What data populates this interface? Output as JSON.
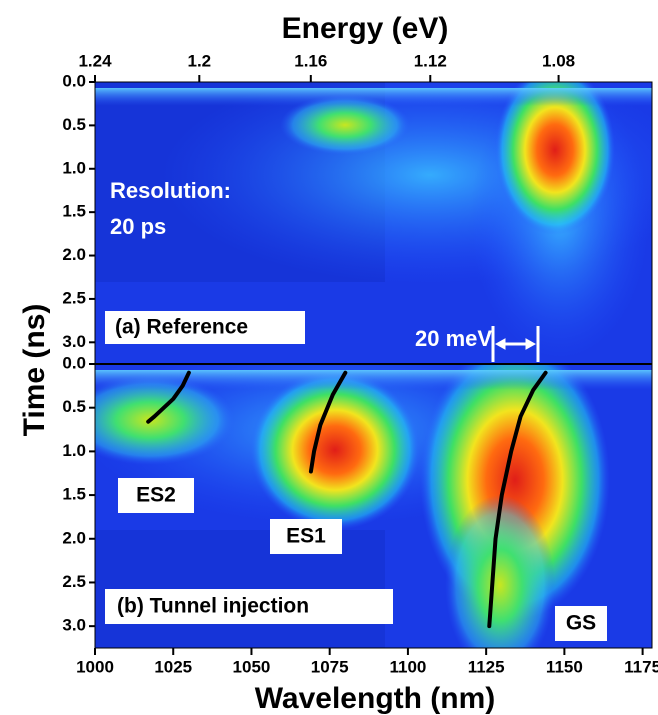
{
  "chart_data": {
    "type": "streak",
    "x2label": "Energy (eV)",
    "xlabel": "Wavelength (nm)",
    "ylabel": "Time (ns)",
    "xlim": [
      1000,
      1178
    ],
    "xticks": [
      1000,
      1025,
      1050,
      1075,
      1100,
      1125,
      1150,
      1175
    ],
    "x2ticks": [
      1.24,
      1.2,
      1.16,
      1.12,
      1.08
    ],
    "panels": [
      {
        "label": "(a) Reference",
        "annotations": [
          "Resolution:",
          "20 ps",
          "20 meV"
        ],
        "ylim": [
          0,
          3.25
        ],
        "yticks": [
          {
            "value": 0,
            "label": "0.0"
          },
          0.5,
          {
            "value": 1,
            "label": "1.0"
          },
          1.5,
          {
            "value": 2,
            "label": "2.0"
          },
          2.5,
          {
            "value": 3,
            "label": "3.0"
          }
        ],
        "series": []
      },
      {
        "label": "(b) Tunnel injection",
        "annotations": [
          "ES2",
          "ES1",
          "GS"
        ],
        "ylim": [
          0,
          3.25
        ],
        "yticks": [
          {
            "value": 0,
            "label": "0.0"
          },
          0.5,
          {
            "value": 1,
            "label": "1.0"
          },
          1.5,
          {
            "value": 2,
            "label": "2.0"
          },
          2.5,
          {
            "value": 3,
            "label": "3.0"
          }
        ],
        "series": [
          {
            "color": "#000000",
            "x": [
              1030,
              1028,
              1025,
              1022,
              1019,
              1017
            ],
            "values": [
              0.1,
              0.25,
              0.4,
              0.5,
              0.6,
              0.66
            ]
          },
          {
            "color": "#000000",
            "x": [
              1080,
              1076,
              1072,
              1070,
              1069
            ],
            "values": [
              0.1,
              0.35,
              0.7,
              1.0,
              1.23
            ]
          },
          {
            "color": "#000000",
            "x": [
              1144,
              1140,
              1136,
              1133,
              1130,
              1128,
              1127,
              1126
            ],
            "values": [
              0.1,
              0.3,
              0.6,
              1.0,
              1.5,
              2.0,
              2.5,
              3.0
            ]
          }
        ]
      }
    ]
  }
}
